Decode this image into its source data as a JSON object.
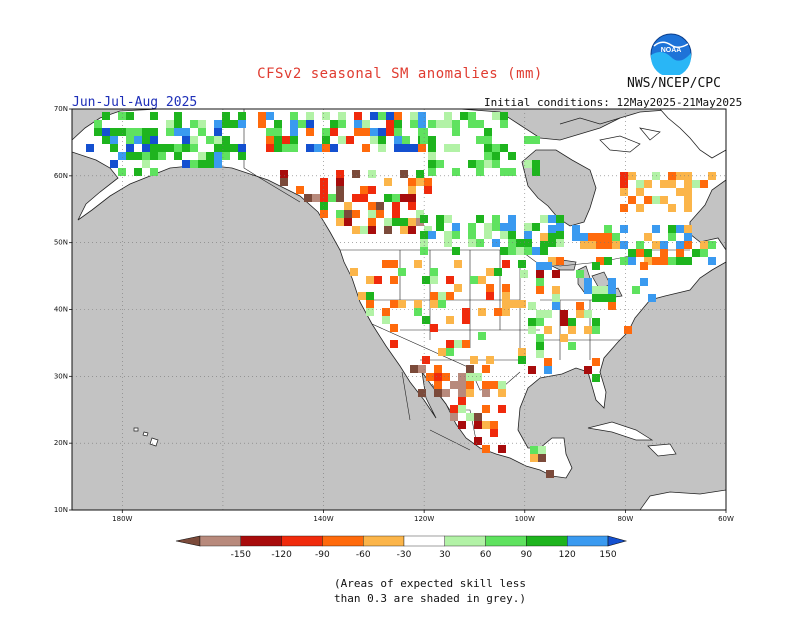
{
  "header": {
    "title": "CFSv2 seasonal SM anomalies (mm)",
    "agency": "NWS/NCEP/CPC",
    "season": "Jun-Jul-Aug 2025",
    "initial_conditions": "Initial conditions: 12May2025-21May2025",
    "logo_text": "NOAA"
  },
  "map": {
    "region": "North America",
    "projection": "lat-lon",
    "lon_range": [
      -190,
      -60
    ],
    "lat_range": [
      10,
      70
    ],
    "lat_ticks": [
      "70N",
      "60N",
      "50N",
      "40N",
      "30N",
      "20N",
      "10N"
    ],
    "lon_ticks": [
      "180W",
      "140W",
      "120W",
      "100W",
      "80W",
      "60W"
    ],
    "ocean_color": "#c3c3c3",
    "land_color": "#ffffff",
    "grid": "dotted"
  },
  "colorbar": {
    "labels": [
      "-150",
      "-120",
      "-90",
      "-60",
      "-30",
      "30",
      "60",
      "90",
      "120",
      "150"
    ],
    "colors": [
      "#7b4a3a",
      "#b88a7c",
      "#a80c0c",
      "#f02a0c",
      "#ff6a0c",
      "#fbb54a",
      "#ffffff",
      "#b2f2a6",
      "#5fe25f",
      "#1eb41e",
      "#3a9af0",
      "#1450d0"
    ]
  },
  "footnote": [
    "(Areas of expected skill less",
    "than 0.3 are shaded in grey.)"
  ]
}
